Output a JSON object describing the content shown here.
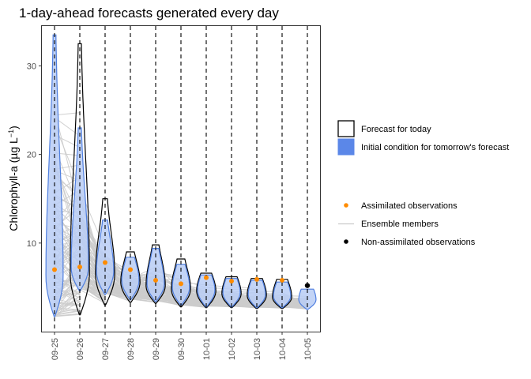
{
  "chart_data": {
    "type": "violin",
    "title": "1-day-ahead forecasts generated every day",
    "ylabel": "Chlorophyll-a (µg L",
    "ylabel_sup": "−1",
    "ylabel_close": ")",
    "xlabel": "",
    "ylim": [
      0,
      34.5
    ],
    "yticks": [
      10,
      20,
      30
    ],
    "categories": [
      "09-25",
      "09-26",
      "09-27",
      "09-28",
      "09-29",
      "09-30",
      "10-01",
      "10-02",
      "10-03",
      "10-04",
      "10-05"
    ],
    "forecast_for_today": [
      null,
      {
        "min": 1.9,
        "max": 32.5,
        "median": 6.6
      },
      {
        "min": 3.0,
        "max": 15.0,
        "median": 6.5
      },
      {
        "min": 3.3,
        "max": 9.0,
        "median": 5.6
      },
      {
        "min": 3.2,
        "max": 9.8,
        "median": 5.2
      },
      {
        "min": 2.8,
        "max": 8.2,
        "median": 4.8
      },
      {
        "min": 2.7,
        "max": 6.6,
        "median": 4.6
      },
      {
        "min": 2.7,
        "max": 6.2,
        "median": 4.3
      },
      {
        "min": 2.6,
        "max": 6.0,
        "median": 4.1
      },
      {
        "min": 2.6,
        "max": 5.9,
        "median": 3.9
      },
      null
    ],
    "initial_condition": [
      {
        "min": 1.7,
        "max": 33.5,
        "median": 6.2
      },
      {
        "min": 4.6,
        "max": 23.0,
        "median": 7.2
      },
      {
        "min": 4.2,
        "max": 12.6,
        "median": 6.8
      },
      {
        "min": 3.6,
        "max": 8.4,
        "median": 5.8
      },
      {
        "min": 3.4,
        "max": 9.4,
        "median": 5.4
      },
      {
        "min": 3.0,
        "max": 7.6,
        "median": 5.0
      },
      {
        "min": 2.8,
        "max": 6.4,
        "median": 4.7
      },
      {
        "min": 2.8,
        "max": 6.0,
        "median": 4.4
      },
      {
        "min": 2.7,
        "max": 5.8,
        "median": 4.2
      },
      {
        "min": 2.7,
        "max": 5.6,
        "median": 4.0
      },
      {
        "min": 2.5,
        "max": 4.8,
        "median": 3.6
      }
    ],
    "assimilated_observations": [
      {
        "x": "09-25",
        "y": 7.0
      },
      {
        "x": "09-26",
        "y": 7.3
      },
      {
        "x": "09-27",
        "y": 7.8
      },
      {
        "x": "09-28",
        "y": 7.0
      },
      {
        "x": "09-29",
        "y": 5.8
      },
      {
        "x": "09-30",
        "y": 5.4
      },
      {
        "x": "10-01",
        "y": 6.1
      },
      {
        "x": "10-02",
        "y": 5.7
      },
      {
        "x": "10-03",
        "y": 5.9
      },
      {
        "x": "10-04",
        "y": 5.8
      }
    ],
    "non_assimilated_observations": [
      {
        "x": "10-05",
        "y": 5.2
      }
    ],
    "legend_top": [
      {
        "label": "Forecast for today",
        "fill": "#ffffff",
        "stroke": "#000000"
      },
      {
        "label": "Initial condition for tomorrow's forecast",
        "fill": "#5b87e8",
        "stroke": "#5b87e8"
      }
    ],
    "legend_bottom": [
      {
        "label": "Assimilated observations",
        "kind": "point",
        "color": "#ff8c00"
      },
      {
        "label": "Ensemble members",
        "kind": "line",
        "color": "#cccccc"
      },
      {
        "label": "Non-assimilated observations",
        "kind": "point",
        "color": "#000000"
      }
    ],
    "legend_placement": "right",
    "grid": false,
    "colors": {
      "ensemble": "#cccccc",
      "initial_fill": "#b8cdf4",
      "initial_stroke": "#4f7fe0",
      "forecast_stroke": "#000000",
      "assimilated": "#ff8c00",
      "non_assimilated": "#000000"
    }
  }
}
